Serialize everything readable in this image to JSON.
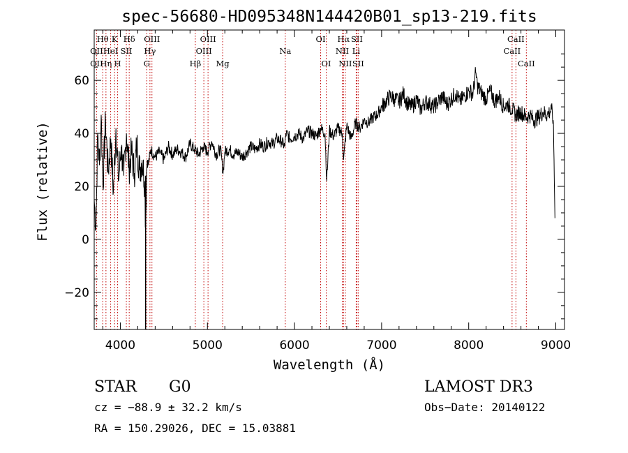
{
  "chart_data": {
    "type": "line",
    "title": "spec-56680-HD095348N144420B01_sp13-219.fits",
    "xlabel": "Wavelength (Å)",
    "ylabel": "Flux (relative)",
    "xlim": [
      3700,
      9100
    ],
    "ylim": [
      -34,
      79
    ],
    "xticks": [
      4000,
      5000,
      6000,
      7000,
      8000,
      9000
    ],
    "yticks": [
      -20,
      0,
      20,
      40,
      60
    ],
    "xtick_labels": [
      "4000",
      "5000",
      "6000",
      "7000",
      "8000",
      "9000"
    ],
    "ytick_labels": [
      "−20",
      "0",
      "20",
      "40",
      "60"
    ],
    "spectrum": {
      "name": "flux",
      "x": [
        3700,
        3720,
        3740,
        3760,
        3780,
        3800,
        3830,
        3860,
        3890,
        3920,
        3950,
        3980,
        4010,
        4040,
        4070,
        4100,
        4130,
        4160,
        4190,
        4220,
        4250,
        4280,
        4290,
        4300,
        4310,
        4320,
        4350,
        4400,
        4450,
        4500,
        4550,
        4600,
        4650,
        4700,
        4750,
        4800,
        4850,
        4900,
        4950,
        5000,
        5050,
        5100,
        5150,
        5180,
        5200,
        5250,
        5300,
        5350,
        5400,
        5450,
        5500,
        5550,
        5600,
        5650,
        5700,
        5750,
        5800,
        5850,
        5890,
        5900,
        5950,
        6000,
        6050,
        6100,
        6150,
        6200,
        6250,
        6300,
        6350,
        6370,
        6400,
        6450,
        6500,
        6550,
        6563,
        6600,
        6650,
        6700,
        6750,
        6800,
        6850,
        6900,
        6950,
        7000,
        7050,
        7100,
        7150,
        7200,
        7250,
        7300,
        7350,
        7400,
        7450,
        7500,
        7550,
        7600,
        7650,
        7700,
        7750,
        7800,
        7850,
        7900,
        7950,
        8000,
        8050,
        8080,
        8100,
        8150,
        8200,
        8250,
        8300,
        8350,
        8400,
        8450,
        8500,
        8540,
        8600,
        8660,
        8700,
        8750,
        8800,
        8850,
        8900,
        8950,
        8970,
        8980,
        8990
      ],
      "y": [
        15,
        5,
        40,
        28,
        47,
        20,
        45,
        25,
        38,
        18,
        42,
        22,
        35,
        24,
        40,
        27,
        33,
        25,
        36,
        26,
        30,
        22,
        5,
        25,
        30,
        28,
        34,
        31,
        33,
        30,
        35,
        32,
        34,
        33,
        31,
        36,
        34,
        32,
        35,
        33,
        37,
        32,
        34,
        25,
        33,
        34,
        32,
        33,
        31,
        33,
        35,
        34,
        36,
        35,
        37,
        36,
        38,
        37,
        35,
        40,
        38,
        39,
        40,
        38,
        41,
        40,
        39,
        42,
        40,
        22,
        41,
        39,
        42,
        40,
        30,
        43,
        38,
        44,
        42,
        45,
        44,
        46,
        47,
        50,
        52,
        54,
        53,
        52,
        55,
        51,
        50,
        53,
        49,
        52,
        51,
        50,
        52,
        54,
        51,
        53,
        55,
        52,
        54,
        56,
        55,
        63,
        58,
        55,
        53,
        56,
        52,
        54,
        50,
        51,
        49,
        47,
        48,
        46,
        47,
        45,
        46,
        48,
        47,
        49,
        45,
        30,
        8
      ]
    },
    "lines": [
      {
        "label": "OII",
        "wave": 3727,
        "row": 2
      },
      {
        "label": "Hθ",
        "wave": 3798,
        "row": 1
      },
      {
        "label": "OII",
        "wave": 3727,
        "row": 3
      },
      {
        "label": "Hη",
        "wave": 3835,
        "row": 3
      },
      {
        "label": "HeI",
        "wave": 3889,
        "row": 2
      },
      {
        "label": "K",
        "wave": 3934,
        "row": 1
      },
      {
        "label": "SII",
        "wave": 4069,
        "row": 2
      },
      {
        "label": "H",
        "wave": 3969,
        "row": 3
      },
      {
        "label": "Hδ",
        "wave": 4102,
        "row": 1
      },
      {
        "label": "OIII",
        "wave": 4363,
        "row": 1
      },
      {
        "label": "Hγ",
        "wave": 4340,
        "row": 2
      },
      {
        "label": "G",
        "wave": 4304,
        "row": 3
      },
      {
        "label": "Hβ",
        "wave": 4861,
        "row": 3
      },
      {
        "label": "OIII",
        "wave": 5007,
        "row": 1
      },
      {
        "label": "OIII",
        "wave": 4959,
        "row": 2
      },
      {
        "label": "Mg",
        "wave": 5175,
        "row": 3
      },
      {
        "label": "Na",
        "wave": 5894,
        "row": 2
      },
      {
        "label": "OI",
        "wave": 6300,
        "row": 1
      },
      {
        "label": "OI",
        "wave": 6364,
        "row": 3
      },
      {
        "label": "Hα",
        "wave": 6563,
        "row": 1
      },
      {
        "label": "SII",
        "wave": 6716,
        "row": 1
      },
      {
        "label": "NII",
        "wave": 6548,
        "row": 2
      },
      {
        "label": "Li",
        "wave": 6708,
        "row": 2
      },
      {
        "label": "NII",
        "wave": 6583,
        "row": 3
      },
      {
        "label": "SII",
        "wave": 6731,
        "row": 3
      },
      {
        "label": "CaII",
        "wave": 8542,
        "row": 1
      },
      {
        "label": "CaII",
        "wave": 8498,
        "row": 2
      },
      {
        "label": "CaII",
        "wave": 8662,
        "row": 3
      }
    ]
  },
  "info": {
    "object_class": "STAR",
    "subclass": "G0",
    "survey": "LAMOST DR3",
    "cz": "cz = −88.9 ± 32.2 km/s",
    "obs_date": "Obs−Date: 20140122",
    "radec": "RA = 150.29026, DEC =  15.03881"
  }
}
